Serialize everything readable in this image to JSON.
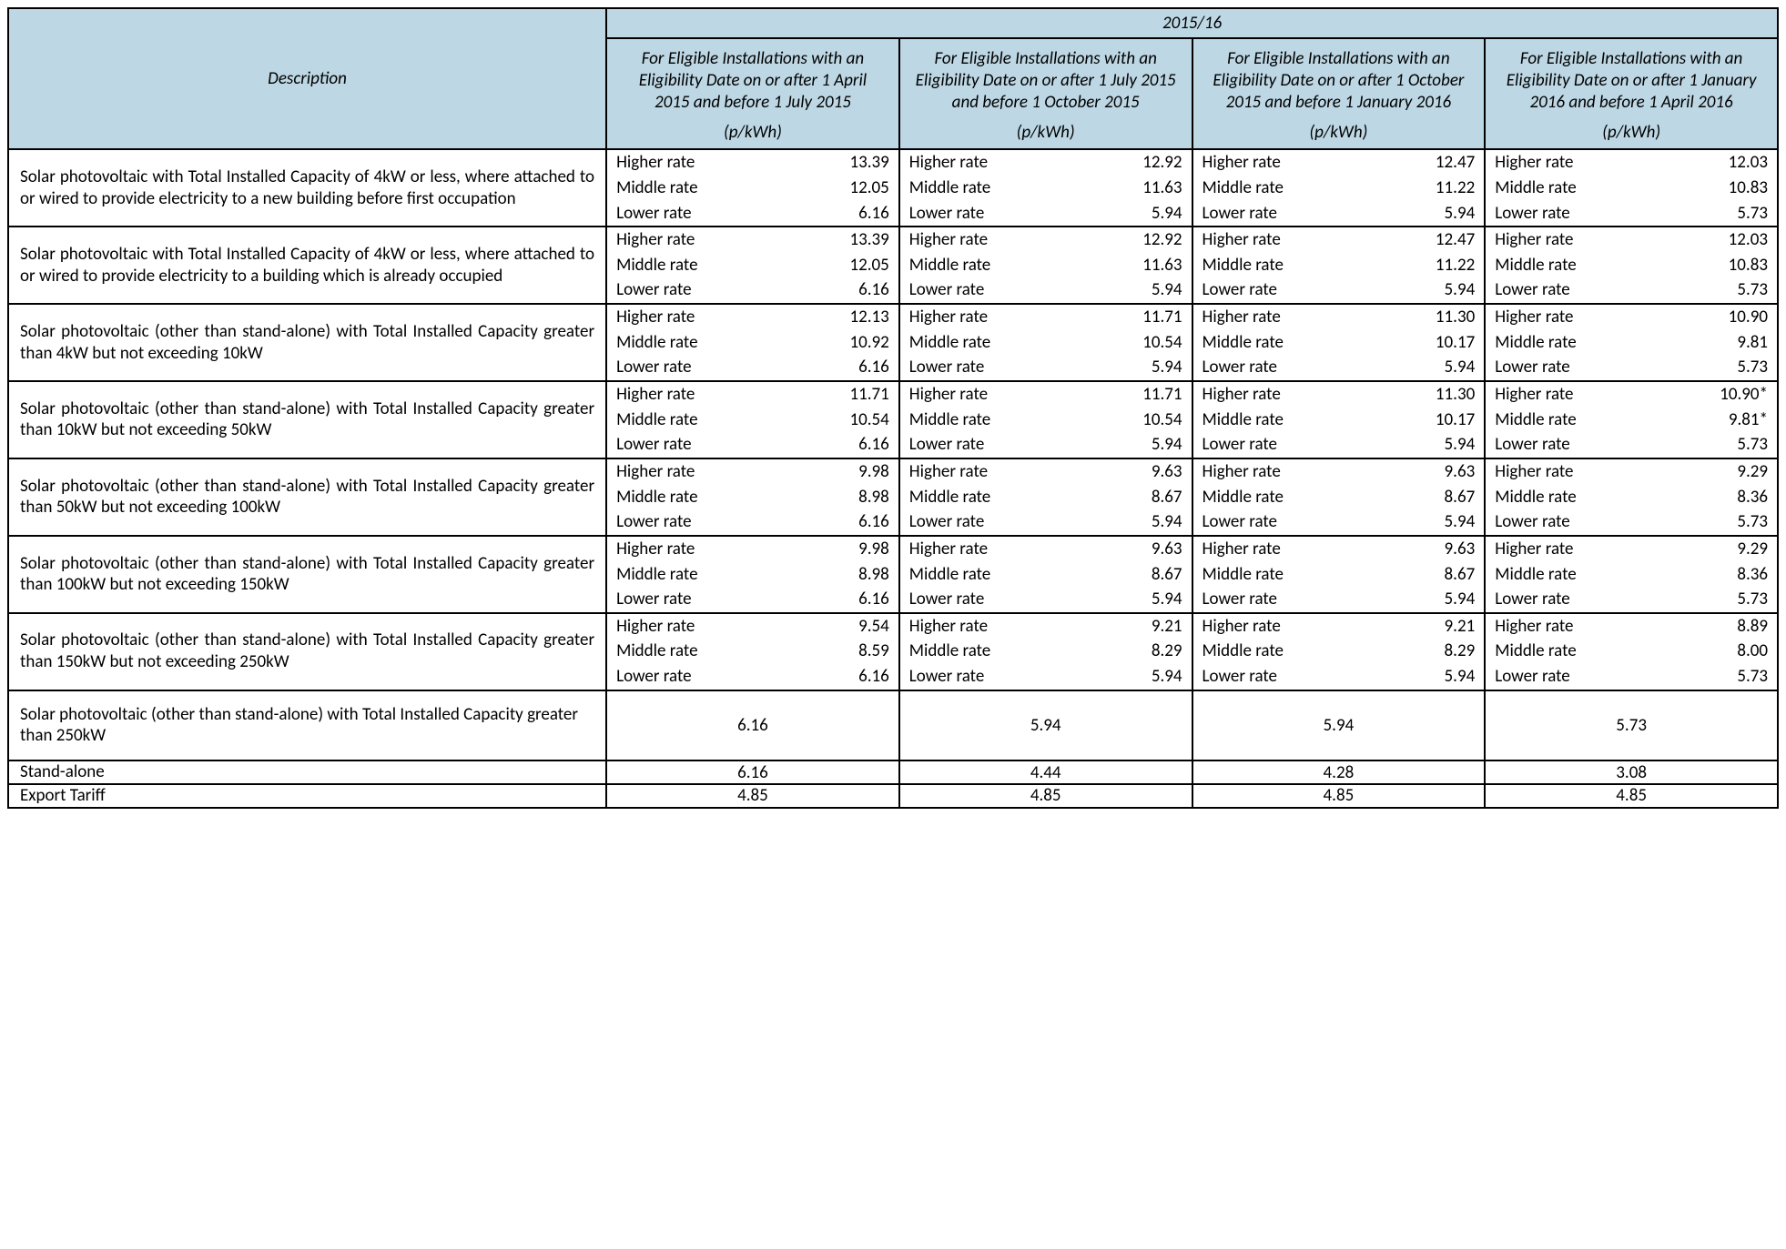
{
  "colors": {
    "header_bg": "#bdd7e4",
    "border": "#000000",
    "text": "#000000",
    "page_bg": "#ffffff"
  },
  "typography": {
    "font_family": "Calibri, 'Segoe UI', Arial, sans-serif",
    "base_fontsize_pt": 14
  },
  "header": {
    "description": "Description",
    "year": "2015/16",
    "unit": "(p/kWh)",
    "periods": [
      "For Eligible Installations with an Eligibility Date on or after 1 April 2015 and before 1 July 2015",
      "For Eligible Installations with an Eligibility Date on or after 1 July 2015 and before 1 October 2015",
      "For Eligible Installations with an Eligibility Date on or after 1 October 2015 and before 1 January 2016",
      "For Eligible Installations with an Eligibility Date on or after 1 January 2016 and before 1 April 2016"
    ]
  },
  "rate_labels": [
    "Higher rate",
    "Middle rate",
    "Lower rate"
  ],
  "rows": [
    {
      "desc": "Solar photovoltaic with Total Installed Capacity of 4kW or less, where attached to or wired to provide electricity to a new building before first occupation",
      "periods": [
        {
          "higher": "13.39",
          "middle": "12.05",
          "lower": "6.16"
        },
        {
          "higher": "12.92",
          "middle": "11.63",
          "lower": "5.94"
        },
        {
          "higher": "12.47",
          "middle": "11.22",
          "lower": "5.94"
        },
        {
          "higher": "12.03",
          "middle": "10.83",
          "lower": "5.73"
        }
      ]
    },
    {
      "desc": "Solar photovoltaic with Total Installed Capacity of 4kW or less, where attached to or wired to provide electricity to a building which is already occupied",
      "periods": [
        {
          "higher": "13.39",
          "middle": "12.05",
          "lower": "6.16"
        },
        {
          "higher": "12.92",
          "middle": "11.63",
          "lower": "5.94"
        },
        {
          "higher": "12.47",
          "middle": "11.22",
          "lower": "5.94"
        },
        {
          "higher": "12.03",
          "middle": "10.83",
          "lower": "5.73"
        }
      ]
    },
    {
      "desc": "Solar photovoltaic (other than stand-alone) with Total Installed Capacity greater than 4kW but not exceeding 10kW",
      "periods": [
        {
          "higher": "12.13",
          "middle": "10.92",
          "lower": "6.16"
        },
        {
          "higher": "11.71",
          "middle": "10.54",
          "lower": "5.94"
        },
        {
          "higher": "11.30",
          "middle": "10.17",
          "lower": "5.94"
        },
        {
          "higher": "10.90",
          "middle": "9.81",
          "lower": "5.73"
        }
      ]
    },
    {
      "desc": "Solar photovoltaic (other than stand-alone) with Total Installed Capacity greater than 10kW but not exceeding 50kW",
      "periods": [
        {
          "higher": "11.71",
          "middle": "10.54",
          "lower": "6.16"
        },
        {
          "higher": "11.71",
          "middle": "10.54",
          "lower": "5.94"
        },
        {
          "higher": "11.30",
          "middle": "10.17",
          "lower": "5.94"
        },
        {
          "higher": "10.90*",
          "middle": "9.81*",
          "lower": "5.73"
        }
      ]
    },
    {
      "desc": "Solar photovoltaic (other than stand-alone) with Total Installed Capacity greater than 50kW but not exceeding 100kW",
      "periods": [
        {
          "higher": "9.98",
          "middle": "8.98",
          "lower": "6.16"
        },
        {
          "higher": "9.63",
          "middle": "8.67",
          "lower": "5.94"
        },
        {
          "higher": "9.63",
          "middle": "8.67",
          "lower": "5.94"
        },
        {
          "higher": "9.29",
          "middle": "8.36",
          "lower": "5.73"
        }
      ]
    },
    {
      "desc": "Solar photovoltaic (other than stand-alone) with Total Installed Capacity greater than 100kW  but not exceeding 150kW",
      "periods": [
        {
          "higher": "9.98",
          "middle": "8.98",
          "lower": "6.16"
        },
        {
          "higher": "9.63",
          "middle": "8.67",
          "lower": "5.94"
        },
        {
          "higher": "9.63",
          "middle": "8.67",
          "lower": "5.94"
        },
        {
          "higher": "9.29",
          "middle": "8.36",
          "lower": "5.73"
        }
      ]
    },
    {
      "desc": "Solar photovoltaic (other than stand-alone) with Total Installed Capacity greater than 150kW but not exceeding 250kW",
      "periods": [
        {
          "higher": "9.54",
          "middle": "8.59",
          "lower": "6.16"
        },
        {
          "higher": "9.21",
          "middle": "8.29",
          "lower": "5.94"
        },
        {
          "higher": "9.21",
          "middle": "8.29",
          "lower": "5.94"
        },
        {
          "higher": "8.89",
          "middle": "8.00",
          "lower": "5.73"
        }
      ]
    }
  ],
  "single_rows": [
    {
      "desc": "Solar photovoltaic (other than stand-alone) with Total Installed Capacity greater than 250kW",
      "values": [
        "6.16",
        "5.94",
        "5.94",
        "5.73"
      ],
      "tall": true
    },
    {
      "desc": "Stand-alone",
      "values": [
        "6.16",
        "4.44",
        "4.28",
        "3.08"
      ],
      "tall": false
    },
    {
      "desc": "Export Tariff",
      "values": [
        "4.85",
        "4.85",
        "4.85",
        "4.85"
      ],
      "tall": false
    }
  ]
}
